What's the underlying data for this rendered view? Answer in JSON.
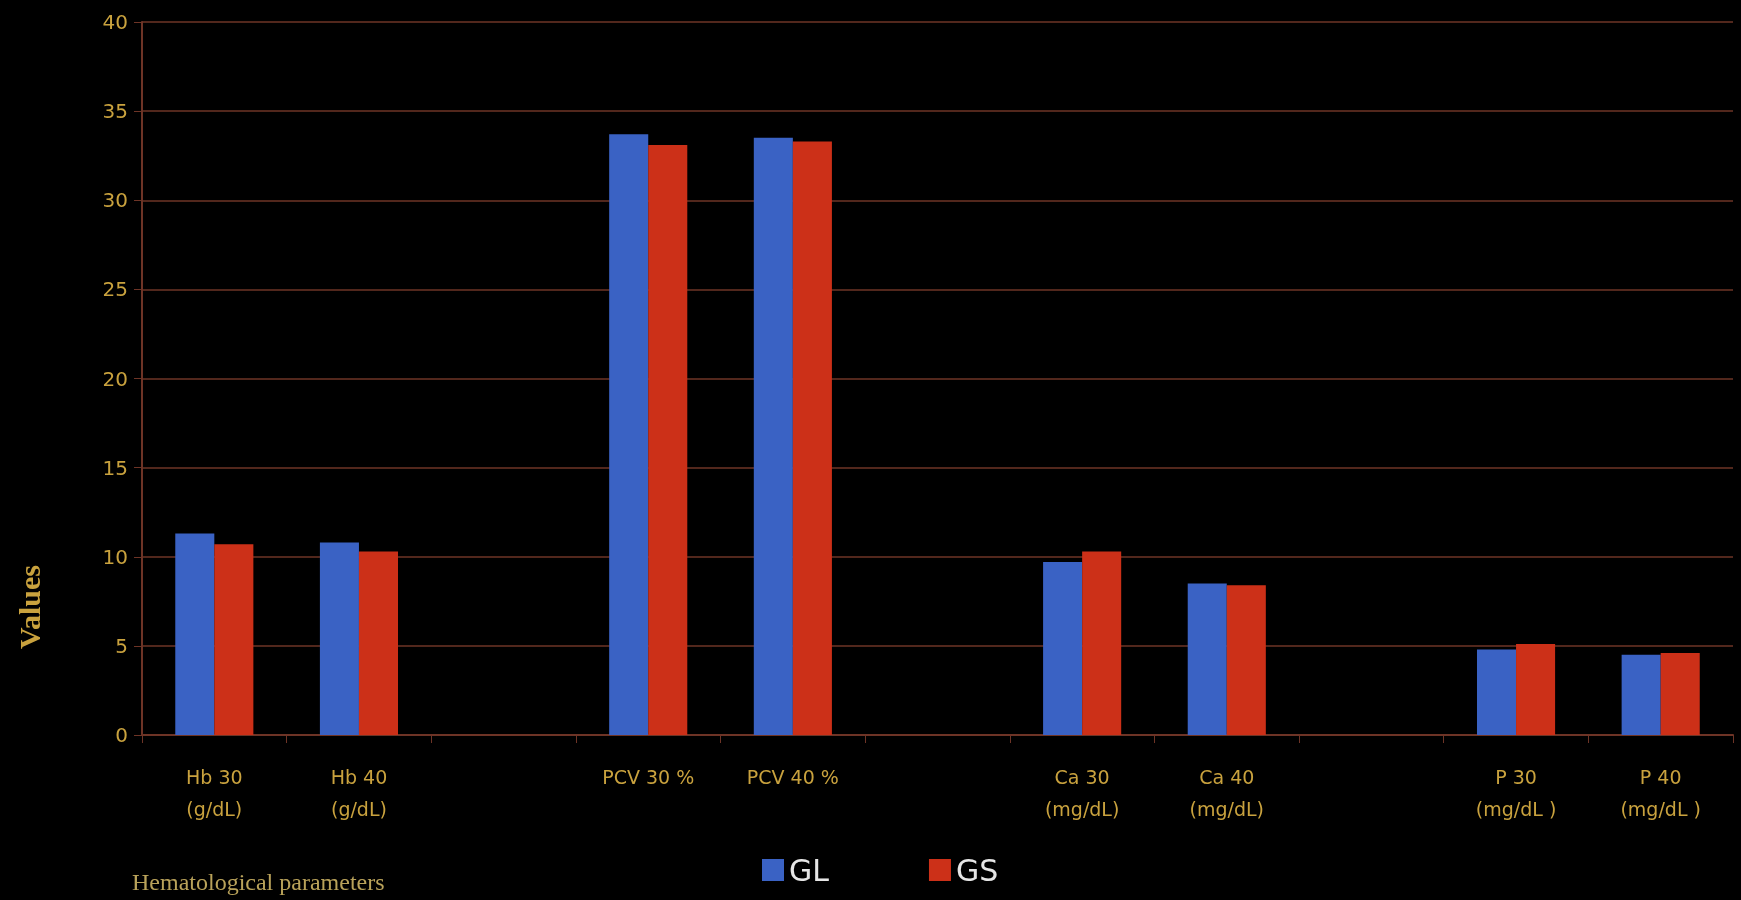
{
  "chart_data": {
    "type": "bar",
    "xlabel": "Hematological parameters",
    "ylabel": "Values",
    "categories": [
      "Hb 30\n(g/dL)",
      "Hb 40\n(g/dL)",
      null,
      "PCV 30 %",
      "PCV 40 %",
      null,
      "Ca 30\n(mg/dL)",
      "Ca 40\n(mg/dL)",
      null,
      "P 30\n(mg/dL )",
      "P 40\n(mg/dL )"
    ],
    "series": [
      {
        "name": "GL",
        "color": "#3a62c4",
        "values": [
          11.3,
          10.8,
          null,
          33.7,
          33.5,
          null,
          9.7,
          8.5,
          null,
          4.8,
          4.5
        ]
      },
      {
        "name": "GS",
        "color": "#cc3018",
        "values": [
          10.7,
          10.3,
          null,
          33.1,
          33.3,
          null,
          10.3,
          8.4,
          null,
          5.1,
          4.6
        ]
      }
    ],
    "ylim": [
      0,
      40
    ],
    "yticks": [
      0,
      5,
      10,
      15,
      20,
      25,
      30,
      35,
      40
    ],
    "grid": "y",
    "legend": "bottom"
  }
}
